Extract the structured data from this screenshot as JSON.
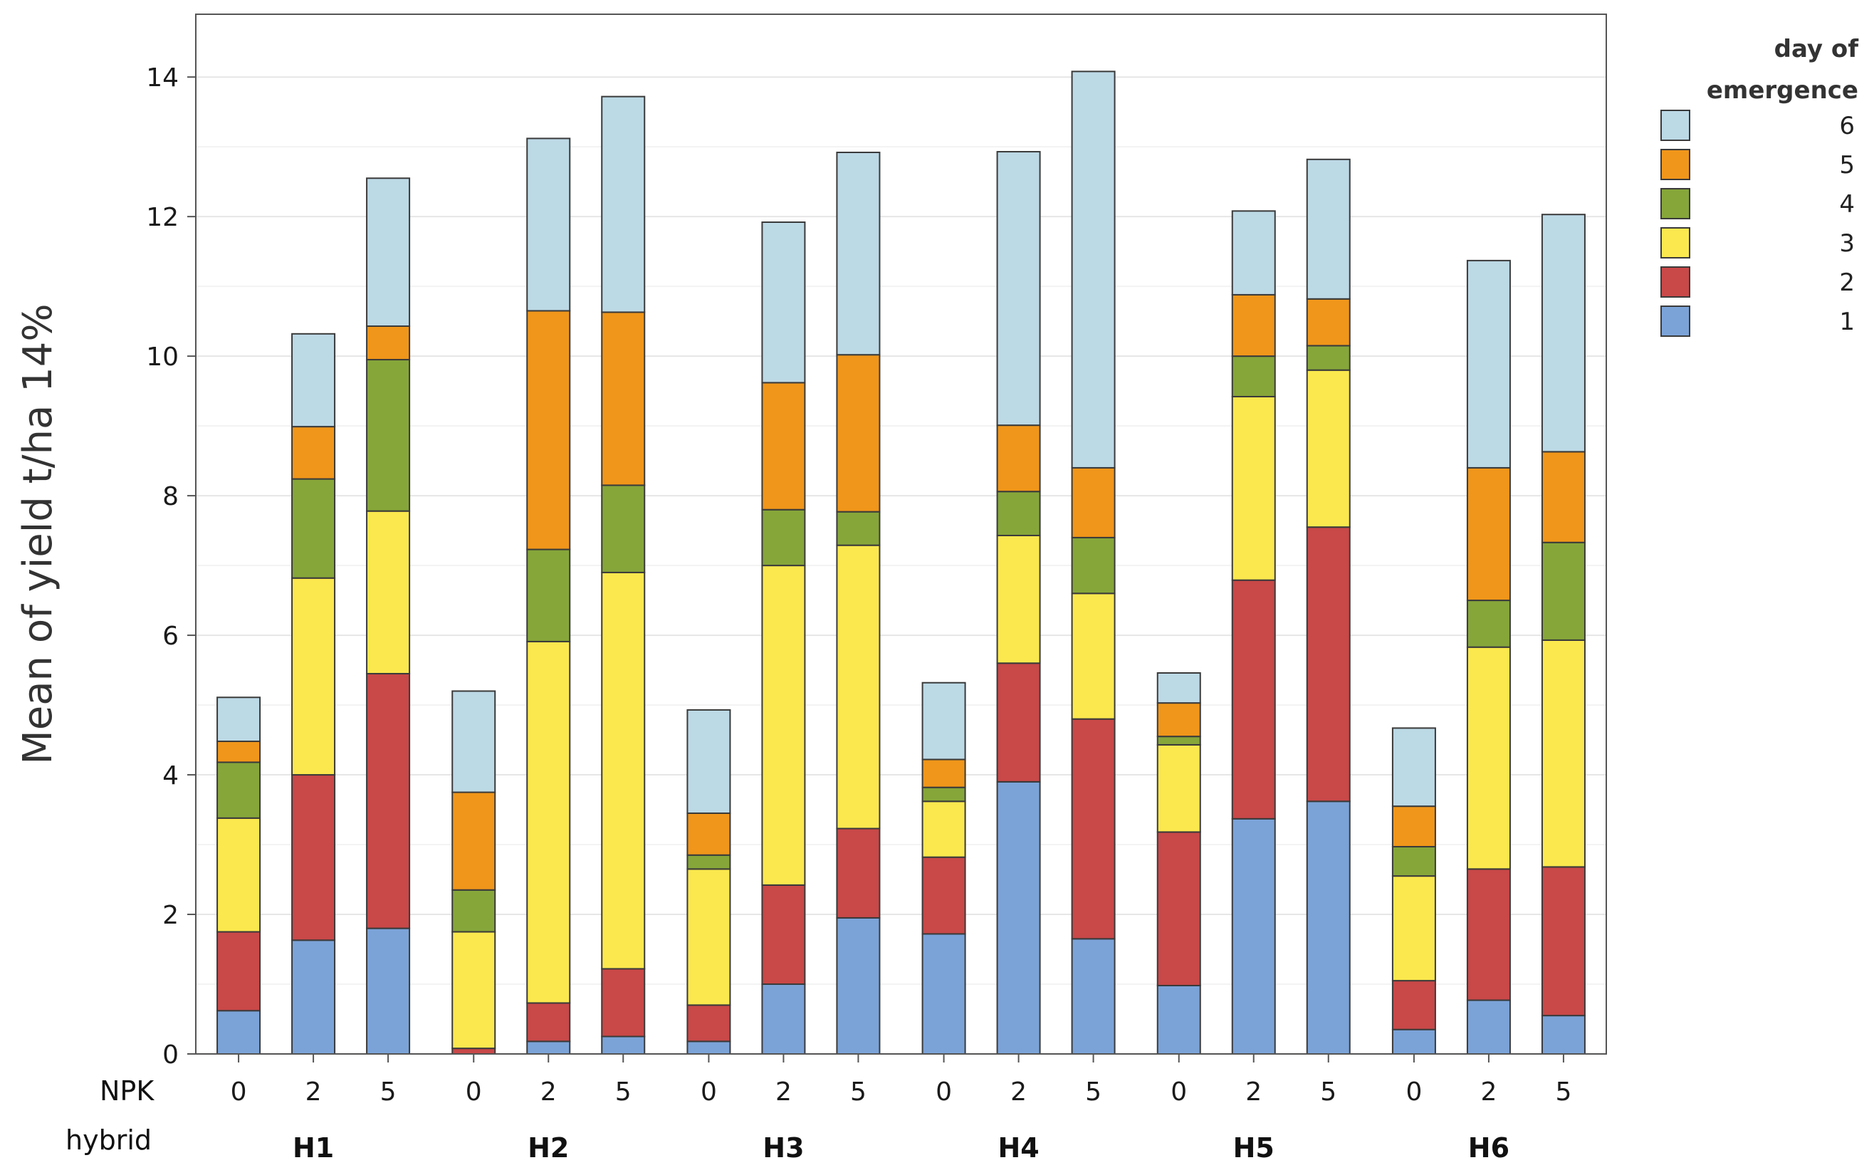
{
  "chart_data": {
    "type": "bar",
    "stacked": true,
    "ylabel": "Mean of yield t/ha 14%",
    "ylim": [
      0,
      14.9
    ],
    "yticks": [
      0,
      2,
      4,
      6,
      8,
      10,
      12,
      14
    ],
    "grid": true,
    "x_row_labels": {
      "npk": "NPK",
      "hybrid": "hybrid"
    },
    "groups": [
      {
        "hybrid": "H1",
        "npk_levels": [
          "0",
          "2",
          "5"
        ]
      },
      {
        "hybrid": "H2",
        "npk_levels": [
          "0",
          "2",
          "5"
        ]
      },
      {
        "hybrid": "H3",
        "npk_levels": [
          "0",
          "2",
          "5"
        ]
      },
      {
        "hybrid": "H4",
        "npk_levels": [
          "0",
          "2",
          "5"
        ]
      },
      {
        "hybrid": "H5",
        "npk_levels": [
          "0",
          "2",
          "5"
        ]
      },
      {
        "hybrid": "H6",
        "npk_levels": [
          "0",
          "2",
          "5"
        ]
      }
    ],
    "legend": {
      "title_lines": [
        "day of",
        "emergence"
      ],
      "position": "top-right"
    },
    "series": [
      {
        "name": "1",
        "color": "#7ba3d8",
        "values": [
          0.62,
          1.63,
          1.8,
          0.0,
          0.18,
          0.25,
          0.18,
          1.0,
          1.95,
          1.72,
          3.9,
          1.65,
          0.98,
          3.37,
          3.62,
          0.35,
          0.77,
          0.55
        ]
      },
      {
        "name": "2",
        "color": "#c94848",
        "values": [
          1.13,
          2.37,
          3.65,
          0.08,
          0.55,
          0.97,
          0.52,
          1.42,
          1.28,
          1.1,
          1.7,
          3.15,
          2.2,
          3.42,
          3.93,
          0.7,
          1.88,
          2.13
        ]
      },
      {
        "name": "3",
        "color": "#fbe84e",
        "values": [
          1.63,
          2.82,
          2.33,
          1.67,
          5.18,
          5.68,
          1.95,
          4.58,
          4.06,
          0.8,
          1.83,
          1.8,
          1.25,
          2.63,
          2.25,
          1.5,
          3.18,
          3.25
        ]
      },
      {
        "name": "4",
        "color": "#86a63a",
        "values": [
          0.8,
          1.42,
          2.17,
          0.6,
          1.32,
          1.25,
          0.2,
          0.8,
          0.48,
          0.2,
          0.63,
          0.8,
          0.12,
          0.58,
          0.35,
          0.42,
          0.67,
          1.4
        ]
      },
      {
        "name": "5",
        "color": "#f0961a",
        "values": [
          0.3,
          0.75,
          0.48,
          1.4,
          3.42,
          2.48,
          0.6,
          1.82,
          2.25,
          0.4,
          0.95,
          1.0,
          0.48,
          0.88,
          0.67,
          0.58,
          1.9,
          1.3
        ]
      },
      {
        "name": "6",
        "color": "#bcd9e6",
        "values": [
          0.63,
          1.33,
          2.12,
          1.45,
          2.47,
          3.09,
          1.48,
          2.3,
          2.9,
          1.1,
          3.92,
          5.68,
          0.43,
          1.2,
          2.0,
          1.12,
          2.97,
          3.4
        ]
      }
    ]
  }
}
